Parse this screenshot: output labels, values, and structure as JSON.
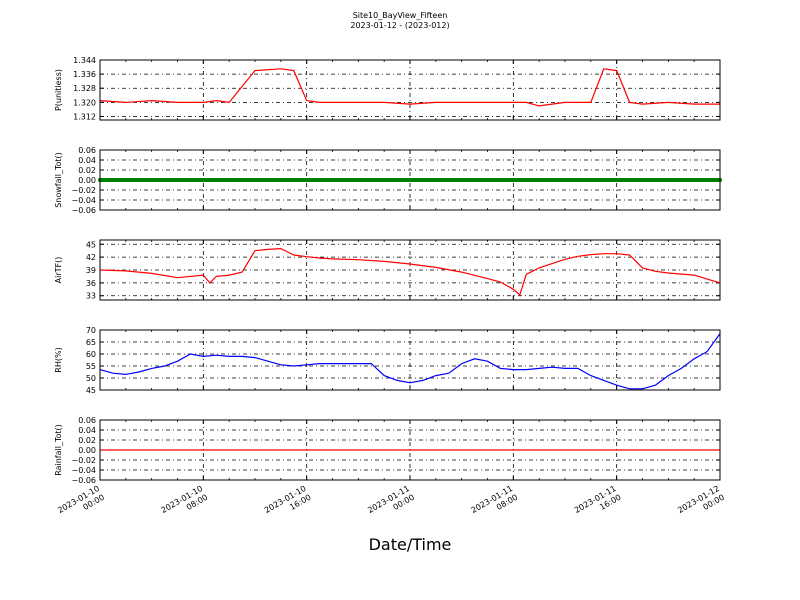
{
  "figure": {
    "title": "Site10_BayView_Fifteen",
    "subtitle": "2023-01-12 - (2023-012)",
    "xlabel": "Date/Time",
    "x_ticks": [
      "2023-01-10\n00:00",
      "2023-01-10\n08:00",
      "2023-01-10\n16:00",
      "2023-01-11\n00:00",
      "2023-01-11\n08:00",
      "2023-01-11\n16:00",
      "2023-01-12\n00:00"
    ]
  },
  "chart_data": [
    {
      "type": "line",
      "ylabel": "P(unitless)",
      "color": "#ff0000",
      "ylim": [
        1.31,
        1.344
      ],
      "yticks": [
        1.312,
        1.32,
        1.328,
        1.336,
        1.344
      ],
      "ytick_labels": [
        "1.312",
        "1.320",
        "1.328",
        "1.336",
        "1.344"
      ],
      "grid": true,
      "x_hours": [
        0,
        2,
        4,
        6,
        8,
        9,
        10,
        12,
        14,
        15,
        16,
        17,
        18,
        20,
        22,
        24,
        26,
        28,
        30,
        32,
        33,
        34,
        36,
        38,
        39,
        40,
        41,
        42,
        44,
        46,
        48
      ],
      "values": [
        1.321,
        1.32,
        1.321,
        1.32,
        1.32,
        1.321,
        1.32,
        1.338,
        1.339,
        1.338,
        1.321,
        1.32,
        1.32,
        1.32,
        1.32,
        1.319,
        1.32,
        1.32,
        1.32,
        1.32,
        1.32,
        1.318,
        1.32,
        1.32,
        1.339,
        1.338,
        1.32,
        1.319,
        1.32,
        1.319,
        1.319
      ]
    },
    {
      "type": "line",
      "ylabel": "Snowfall_Tot()",
      "color": "#008000",
      "ylim": [
        -0.06,
        0.06
      ],
      "yticks": [
        -0.06,
        -0.04,
        -0.02,
        0.0,
        0.02,
        0.04,
        0.06
      ],
      "ytick_labels": [
        "−0.06",
        "−0.04",
        "−0.02",
        "0.00",
        "0.02",
        "0.04",
        "0.06"
      ],
      "grid": true,
      "marker": "dots",
      "x_hours": [
        0,
        48
      ],
      "values": [
        0.0,
        0.0
      ]
    },
    {
      "type": "line",
      "ylabel": "AirTF()",
      "color": "#ff0000",
      "ylim": [
        32,
        46
      ],
      "yticks": [
        33,
        36,
        39,
        42,
        45
      ],
      "ytick_labels": [
        "33",
        "36",
        "39",
        "42",
        "45"
      ],
      "grid": true,
      "x_hours": [
        0,
        2,
        4,
        6,
        8,
        8.5,
        9,
        10,
        11,
        11.5,
        12,
        13,
        14,
        15,
        16,
        17,
        18,
        20,
        22,
        24,
        26,
        28,
        30,
        31,
        32,
        32.5,
        33,
        34,
        35,
        36,
        37,
        38,
        39,
        40,
        41,
        42,
        43,
        44,
        46,
        48
      ],
      "values": [
        39,
        38.8,
        38.2,
        37.2,
        37.8,
        36,
        37.5,
        37.8,
        38.5,
        41,
        43.5,
        43.8,
        44,
        42.5,
        42.1,
        41.8,
        41.6,
        41.4,
        41,
        40.4,
        39.6,
        38.5,
        37,
        36.2,
        34.5,
        33.2,
        38,
        39.5,
        40.5,
        41.5,
        42.2,
        42.6,
        42.8,
        42.8,
        42.5,
        39.5,
        38.7,
        38.3,
        37.8,
        36
      ]
    },
    {
      "type": "line",
      "ylabel": "RH(%)",
      "color": "#0000ff",
      "ylim": [
        45,
        70
      ],
      "yticks": [
        45,
        50,
        55,
        60,
        65,
        70
      ],
      "ytick_labels": [
        "45",
        "50",
        "55",
        "60",
        "65",
        "70"
      ],
      "grid": true,
      "x_hours": [
        0,
        1,
        2,
        3,
        4,
        5,
        6,
        7,
        8,
        9,
        10,
        11,
        12,
        13,
        14,
        15,
        16,
        17,
        18,
        19,
        20,
        21,
        22,
        23,
        24,
        25,
        26,
        27,
        28,
        29,
        30,
        31,
        32,
        33,
        34,
        35,
        36,
        37,
        38,
        39,
        40,
        41,
        42,
        43,
        44,
        45,
        46,
        47,
        48
      ],
      "values": [
        53.5,
        52,
        51.5,
        52.5,
        54,
        55,
        57,
        60,
        59,
        59.5,
        59,
        59,
        58.5,
        57,
        55.5,
        55,
        55.5,
        56,
        56,
        56,
        56,
        56,
        51,
        49,
        48,
        49,
        51,
        52,
        56,
        58,
        57,
        54,
        53.5,
        53.5,
        54,
        54.5,
        54,
        54,
        51,
        49,
        47,
        45.5,
        45.5,
        47,
        51,
        54,
        58,
        61,
        68.5
      ]
    },
    {
      "type": "line",
      "ylabel": "Rainfall_Tot()",
      "color": "#ff0000",
      "ylim": [
        -0.06,
        0.06
      ],
      "yticks": [
        -0.06,
        -0.04,
        -0.02,
        0.0,
        0.02,
        0.04,
        0.06
      ],
      "ytick_labels": [
        "−0.06",
        "−0.04",
        "−0.02",
        "0.00",
        "0.02",
        "0.04",
        "0.06"
      ],
      "grid": true,
      "x_hours": [
        0,
        48
      ],
      "values": [
        0.0,
        0.0
      ]
    }
  ]
}
